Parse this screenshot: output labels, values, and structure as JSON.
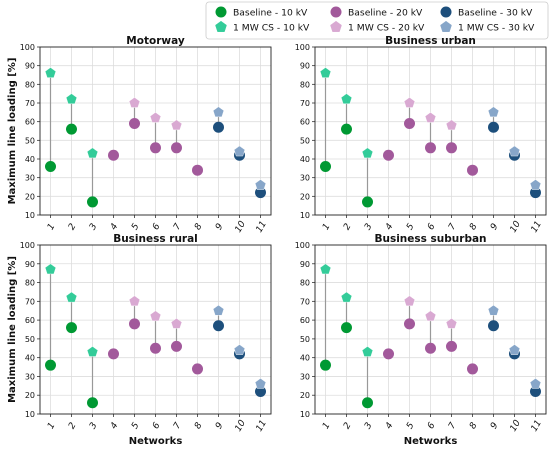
{
  "figure": {
    "shared_ylabel": "Maximum line loading [%]",
    "shared_xlabel": "Networks"
  },
  "legend": {
    "placement": "top-right",
    "entries": [
      {
        "label": "Baseline - 10 kV",
        "color": "#009933",
        "marker": "circle"
      },
      {
        "label": "1 MW CS - 10 kV",
        "color": "#33cc99",
        "marker": "pentagon"
      },
      {
        "label": "Baseline - 20 kV",
        "color": "#a2599b",
        "marker": "circle"
      },
      {
        "label": "1 MW CS - 20 kV",
        "color": "#d9a9d2",
        "marker": "pentagon"
      },
      {
        "label": "Baseline - 30 kV",
        "color": "#1d4f7c",
        "marker": "circle"
      },
      {
        "label": "1 MW CS - 30 kV",
        "color": "#87a6c9",
        "marker": "pentagon"
      }
    ]
  },
  "chart_data": [
    {
      "type": "scatter",
      "title": "Motorway",
      "xlabel": "",
      "ylabel": "Maximum line loading [%]",
      "categories": [
        "1",
        "2",
        "3",
        "4",
        "5",
        "6",
        "7",
        "8",
        "9",
        "10",
        "11"
      ],
      "ylim": [
        10,
        100
      ],
      "yticks": [
        10,
        20,
        30,
        40,
        50,
        60,
        70,
        80,
        90,
        100
      ],
      "grid": true,
      "series": [
        {
          "name": "Baseline - 10 kV",
          "x": [
            "1",
            "2",
            "3"
          ],
          "values": [
            36,
            56,
            17
          ]
        },
        {
          "name": "1 MW CS - 10 kV",
          "x": [
            "1",
            "2",
            "3"
          ],
          "values": [
            86,
            72,
            43
          ]
        },
        {
          "name": "Baseline - 20 kV",
          "x": [
            "4",
            "5",
            "6",
            "7",
            "8"
          ],
          "values": [
            42,
            59,
            46,
            46,
            34
          ]
        },
        {
          "name": "1 MW CS - 20 kV",
          "x": [
            "5",
            "6",
            "7"
          ],
          "values": [
            70,
            62,
            58
          ]
        },
        {
          "name": "Baseline - 30 kV",
          "x": [
            "9",
            "10",
            "11"
          ],
          "values": [
            57,
            42,
            22
          ]
        },
        {
          "name": "1 MW CS - 30 kV",
          "x": [
            "9",
            "10",
            "11"
          ],
          "values": [
            65,
            44,
            26
          ]
        }
      ]
    },
    {
      "type": "scatter",
      "title": "Business urban",
      "xlabel": "",
      "ylabel": "",
      "categories": [
        "1",
        "2",
        "3",
        "4",
        "5",
        "6",
        "7",
        "8",
        "9",
        "10",
        "11"
      ],
      "ylim": [
        10,
        100
      ],
      "yticks": [
        10,
        20,
        30,
        40,
        50,
        60,
        70,
        80,
        90,
        100
      ],
      "grid": true,
      "series": [
        {
          "name": "Baseline - 10 kV",
          "x": [
            "1",
            "2",
            "3"
          ],
          "values": [
            36,
            56,
            17
          ]
        },
        {
          "name": "1 MW CS - 10 kV",
          "x": [
            "1",
            "2",
            "3"
          ],
          "values": [
            86,
            72,
            43
          ]
        },
        {
          "name": "Baseline - 20 kV",
          "x": [
            "4",
            "5",
            "6",
            "7",
            "8"
          ],
          "values": [
            42,
            59,
            46,
            46,
            34
          ]
        },
        {
          "name": "1 MW CS - 20 kV",
          "x": [
            "5",
            "6",
            "7"
          ],
          "values": [
            70,
            62,
            58
          ]
        },
        {
          "name": "Baseline - 30 kV",
          "x": [
            "9",
            "10",
            "11"
          ],
          "values": [
            57,
            42,
            22
          ]
        },
        {
          "name": "1 MW CS - 30 kV",
          "x": [
            "9",
            "10",
            "11"
          ],
          "values": [
            65,
            44,
            26
          ]
        }
      ]
    },
    {
      "type": "scatter",
      "title": "Business rural",
      "xlabel": "Networks",
      "ylabel": "Maximum line loading [%]",
      "categories": [
        "1",
        "2",
        "3",
        "4",
        "5",
        "6",
        "7",
        "8",
        "9",
        "10",
        "11"
      ],
      "ylim": [
        10,
        100
      ],
      "yticks": [
        10,
        20,
        30,
        40,
        50,
        60,
        70,
        80,
        90,
        100
      ],
      "grid": true,
      "series": [
        {
          "name": "Baseline - 10 kV",
          "x": [
            "1",
            "2",
            "3"
          ],
          "values": [
            36,
            56,
            16
          ]
        },
        {
          "name": "1 MW CS - 10 kV",
          "x": [
            "1",
            "2",
            "3"
          ],
          "values": [
            87,
            72,
            43
          ]
        },
        {
          "name": "Baseline - 20 kV",
          "x": [
            "4",
            "5",
            "6",
            "7",
            "8"
          ],
          "values": [
            42,
            58,
            45,
            46,
            34
          ]
        },
        {
          "name": "1 MW CS - 20 kV",
          "x": [
            "5",
            "6",
            "7"
          ],
          "values": [
            70,
            62,
            58
          ]
        },
        {
          "name": "Baseline - 30 kV",
          "x": [
            "9",
            "10",
            "11"
          ],
          "values": [
            57,
            42,
            22
          ]
        },
        {
          "name": "1 MW CS - 30 kV",
          "x": [
            "9",
            "10",
            "11"
          ],
          "values": [
            65,
            44,
            26
          ]
        }
      ]
    },
    {
      "type": "scatter",
      "title": "Business suburban",
      "xlabel": "Networks",
      "ylabel": "",
      "categories": [
        "1",
        "2",
        "3",
        "4",
        "5",
        "6",
        "7",
        "8",
        "9",
        "10",
        "11"
      ],
      "ylim": [
        10,
        100
      ],
      "yticks": [
        10,
        20,
        30,
        40,
        50,
        60,
        70,
        80,
        90,
        100
      ],
      "grid": true,
      "series": [
        {
          "name": "Baseline - 10 kV",
          "x": [
            "1",
            "2",
            "3"
          ],
          "values": [
            36,
            56,
            16
          ]
        },
        {
          "name": "1 MW CS - 10 kV",
          "x": [
            "1",
            "2",
            "3"
          ],
          "values": [
            87,
            72,
            43
          ]
        },
        {
          "name": "Baseline - 20 kV",
          "x": [
            "4",
            "5",
            "6",
            "7",
            "8"
          ],
          "values": [
            42,
            58,
            45,
            46,
            34
          ]
        },
        {
          "name": "1 MW CS - 20 kV",
          "x": [
            "5",
            "6",
            "7"
          ],
          "values": [
            70,
            62,
            58
          ]
        },
        {
          "name": "Baseline - 30 kV",
          "x": [
            "9",
            "10",
            "11"
          ],
          "values": [
            57,
            42,
            22
          ]
        },
        {
          "name": "1 MW CS - 30 kV",
          "x": [
            "9",
            "10",
            "11"
          ],
          "values": [
            65,
            44,
            26
          ]
        }
      ]
    }
  ]
}
